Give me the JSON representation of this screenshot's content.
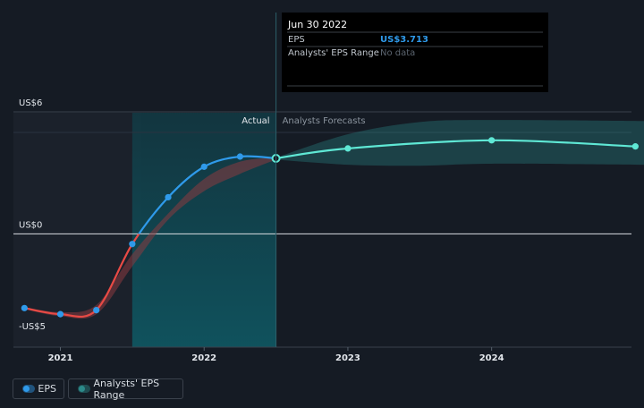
{
  "chart_data": {
    "type": "line",
    "tooltip": {
      "date": "Jun 30 2022",
      "rows": [
        {
          "label": "EPS",
          "value": "US$3.713",
          "color": "#2f9aea"
        },
        {
          "label": "Analysts' EPS Range",
          "value": "No data",
          "color": "#5c6570"
        }
      ]
    },
    "y_ticks": [
      {
        "label": "US$6",
        "value": 6
      },
      {
        "label": "US$0",
        "value": 0
      },
      {
        "label": "-US$5",
        "value": -5
      }
    ],
    "x_ticks": [
      {
        "label": "2021",
        "value": 2021.0
      },
      {
        "label": "2022",
        "value": 2022.0
      },
      {
        "label": "2023",
        "value": 2023.0
      },
      {
        "label": "2024",
        "value": 2024.0
      }
    ],
    "ylim": [
      -5,
      6
    ],
    "xlim": [
      2020.58,
      2025.06
    ],
    "divider_labels": {
      "actual": "Actual",
      "forecast": "Analysts Forecasts"
    },
    "highlight_start": 2021.5,
    "divider_x": 2022.5,
    "series": [
      {
        "name": "EPS",
        "color_negative": "#e84a45",
        "color_positive": "#2f9aea",
        "points": [
          {
            "x": 2020.75,
            "y": -3.65
          },
          {
            "x": 2021.0,
            "y": -3.95
          },
          {
            "x": 2021.25,
            "y": -3.75
          },
          {
            "x": 2021.5,
            "y": -0.5
          },
          {
            "x": 2021.75,
            "y": 1.8
          },
          {
            "x": 2022.0,
            "y": 3.3
          },
          {
            "x": 2022.25,
            "y": 3.8
          },
          {
            "x": 2022.5,
            "y": 3.713
          }
        ]
      },
      {
        "name": "EPS forecast",
        "color": "#5fe8d5",
        "points": [
          {
            "x": 2022.5,
            "y": 3.713
          },
          {
            "x": 2023.0,
            "y": 4.2
          },
          {
            "x": 2024.0,
            "y": 4.6
          },
          {
            "x": 2025.0,
            "y": 4.3
          }
        ]
      }
    ],
    "range_band_past": {
      "upper": [
        [
          2020.75,
          -3.6
        ],
        [
          2021.0,
          -3.85
        ],
        [
          2021.25,
          -3.5
        ],
        [
          2021.5,
          -1.0
        ],
        [
          2021.75,
          1.0
        ],
        [
          2022.0,
          2.7
        ],
        [
          2022.25,
          3.55
        ],
        [
          2022.5,
          3.75
        ]
      ],
      "lower": [
        [
          2020.75,
          -3.7
        ],
        [
          2021.0,
          -4.05
        ],
        [
          2021.25,
          -3.95
        ],
        [
          2021.5,
          -1.6
        ],
        [
          2021.75,
          0.7
        ],
        [
          2022.0,
          2.1
        ],
        [
          2022.25,
          2.95
        ],
        [
          2022.5,
          3.65
        ]
      ]
    },
    "range_band_forecast": {
      "upper": [
        [
          2022.5,
          3.75
        ],
        [
          2023.0,
          4.9
        ],
        [
          2023.5,
          5.5
        ],
        [
          2024.0,
          5.6
        ],
        [
          2025.06,
          5.55
        ]
      ],
      "lower": [
        [
          2022.5,
          3.65
        ],
        [
          2023.0,
          3.4
        ],
        [
          2023.5,
          3.35
        ],
        [
          2024.0,
          3.45
        ],
        [
          2025.06,
          3.4
        ]
      ]
    },
    "legend": [
      {
        "label": "EPS",
        "color": "#2f9aea"
      },
      {
        "label": "Analysts' EPS Range",
        "color": "#2c8a8a"
      }
    ]
  }
}
